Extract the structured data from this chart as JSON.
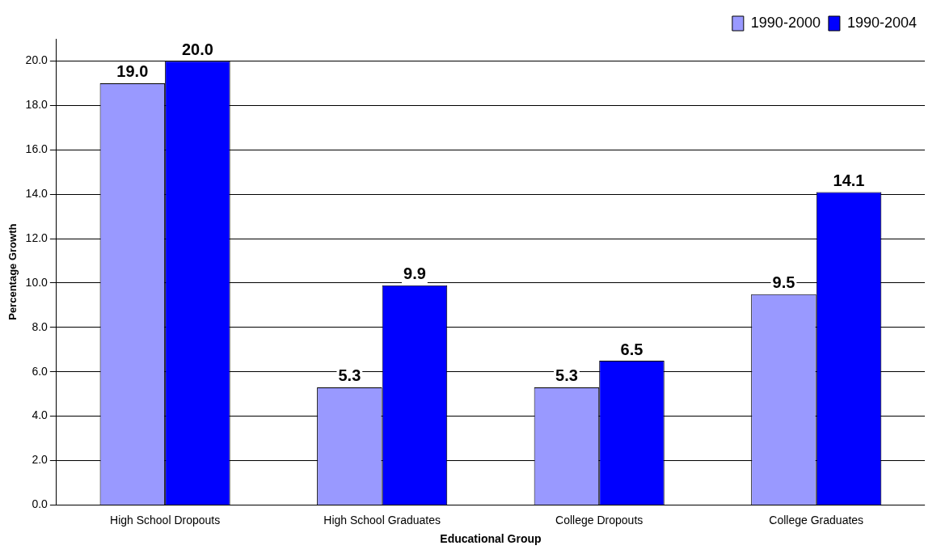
{
  "chart_data": {
    "type": "bar",
    "xlabel": "Educational Group",
    "ylabel": "Percentage Growth",
    "categories": [
      "High School Dropouts",
      "High School Graduates",
      "College Dropouts",
      "College Graduates"
    ],
    "series": [
      {
        "name": "1990-2000",
        "color": "#9999ff",
        "values": [
          19.0,
          5.3,
          5.3,
          9.5
        ],
        "value_labels": [
          "19.0",
          "5.3",
          "5.3",
          "9.5"
        ]
      },
      {
        "name": "1990-2004",
        "color": "#0000ff",
        "values": [
          20.0,
          9.9,
          6.5,
          14.1
        ],
        "value_labels": [
          "20.0",
          "9.9",
          "6.5",
          "14.1"
        ]
      }
    ],
    "ylim": [
      0,
      21
    ],
    "yticks": [
      {
        "value": 0,
        "label": "0.0"
      },
      {
        "value": 2,
        "label": "2.0"
      },
      {
        "value": 4,
        "label": "4.0"
      },
      {
        "value": 6,
        "label": "6.0"
      },
      {
        "value": 8,
        "label": "8.0"
      },
      {
        "value": 10,
        "label": "10.0"
      },
      {
        "value": 12,
        "label": "12.0"
      },
      {
        "value": 14,
        "label": "14.0"
      },
      {
        "value": 16,
        "label": "16.0"
      },
      {
        "value": 18,
        "label": "18.0"
      },
      {
        "value": 20,
        "label": "20.0"
      }
    ],
    "grid": "y",
    "legend": "top right"
  }
}
